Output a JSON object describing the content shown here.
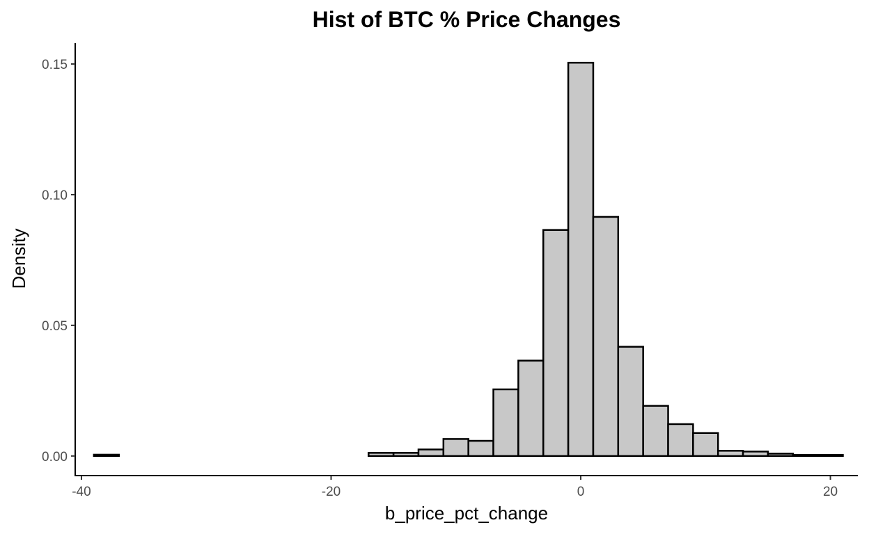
{
  "chart_data": {
    "type": "bar",
    "title": "Hist of BTC % Price Changes",
    "xlabel": "b_price_pct_change",
    "ylabel": "Density",
    "xlim": [
      -40.5,
      22.2
    ],
    "ylim": [
      -0.0075,
      0.158
    ],
    "x_ticks": [
      -40,
      -20,
      0,
      20
    ],
    "x_tick_labels": [
      "-40",
      "-20",
      "0",
      "20"
    ],
    "y_ticks": [
      0.0,
      0.05,
      0.1,
      0.15
    ],
    "y_tick_labels": [
      "0.00",
      "0.05",
      "0.10",
      "0.15"
    ],
    "grid": false,
    "bin_width": 2.0,
    "bin_starts": [
      -39.0,
      -37.0,
      -35.0,
      -33.0,
      -31.0,
      -29.0,
      -27.0,
      -25.0,
      -23.0,
      -21.0,
      -19.0,
      -17.0,
      -15.0,
      -13.0,
      -11.0,
      -9.0,
      -7.0,
      -5.0,
      -3.0,
      -1.0,
      1.0,
      3.0,
      5.0,
      7.0,
      9.0,
      11.0,
      13.0,
      15.0,
      17.0,
      19.0
    ],
    "values": [
      0.0005,
      0.0,
      0.0,
      0.0,
      0.0,
      0.0,
      0.0,
      0.0,
      0.0,
      0.0,
      0.0,
      0.0012,
      0.0012,
      0.0025,
      0.0065,
      0.0058,
      0.0255,
      0.0365,
      0.0865,
      0.1505,
      0.0915,
      0.0418,
      0.0192,
      0.0122,
      0.0088,
      0.002,
      0.0017,
      0.0009,
      0.0004,
      0.0004
    ],
    "colors": {
      "fill": "#c8c8c8",
      "stroke": "#000000"
    }
  }
}
